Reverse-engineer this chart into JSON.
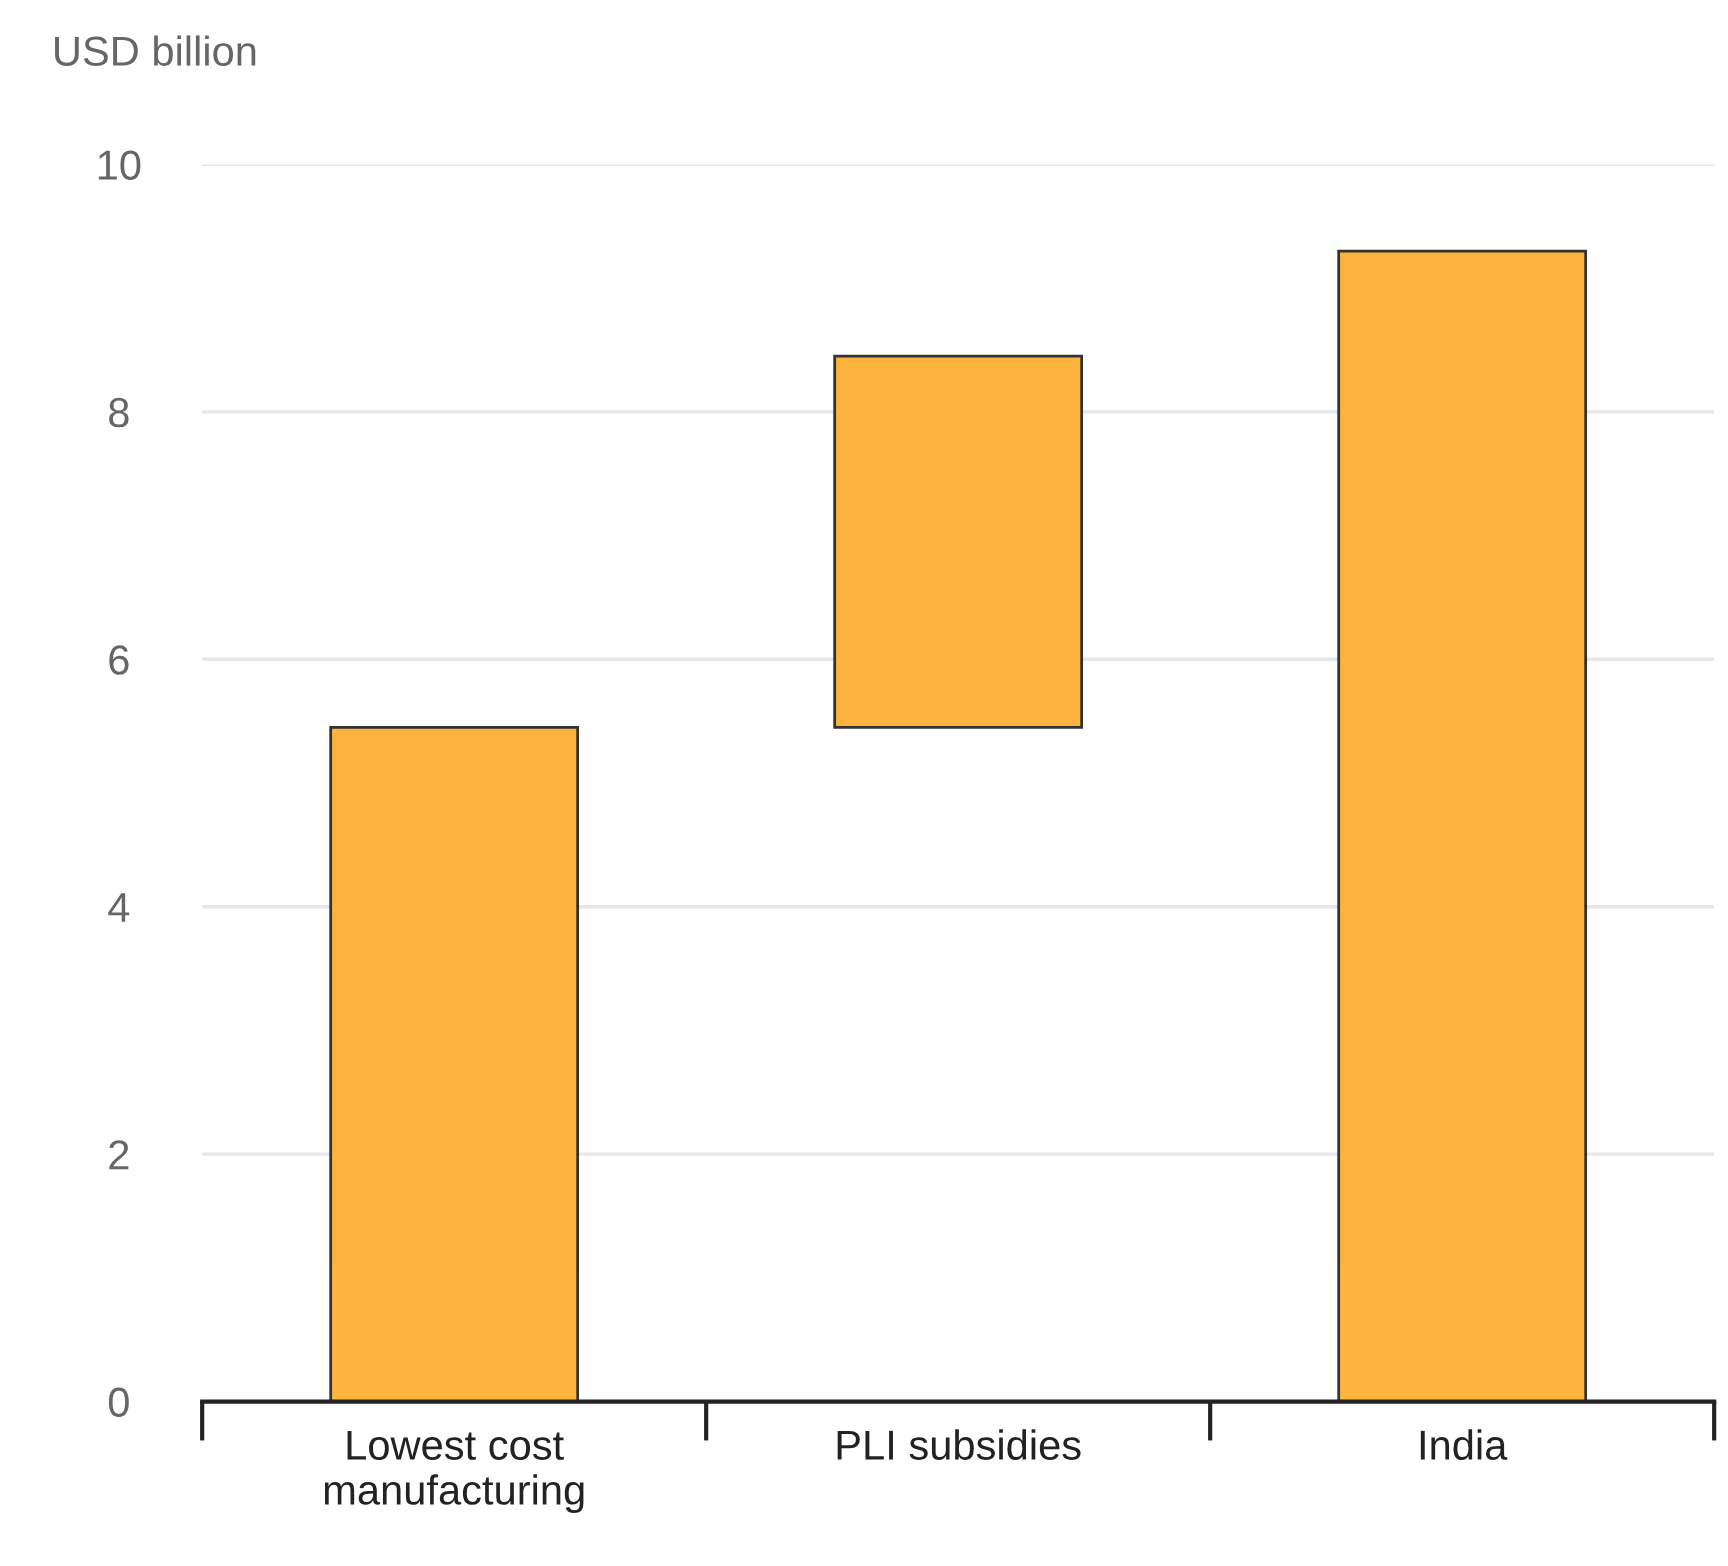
{
  "chart_data": {
    "type": "bar",
    "ylabel": "USD billion",
    "categories": [
      "Lowest cost\nmanufacturing",
      "PLI subsidies",
      "India"
    ],
    "values": [
      5.45,
      3.0,
      9.3
    ],
    "base": [
      0,
      5.45,
      0
    ],
    "color": "#fdb43e",
    "ylim": [
      0,
      10
    ],
    "yticks": [
      0,
      2,
      4,
      6,
      8,
      10
    ],
    "grid": "y",
    "legend": false
  }
}
